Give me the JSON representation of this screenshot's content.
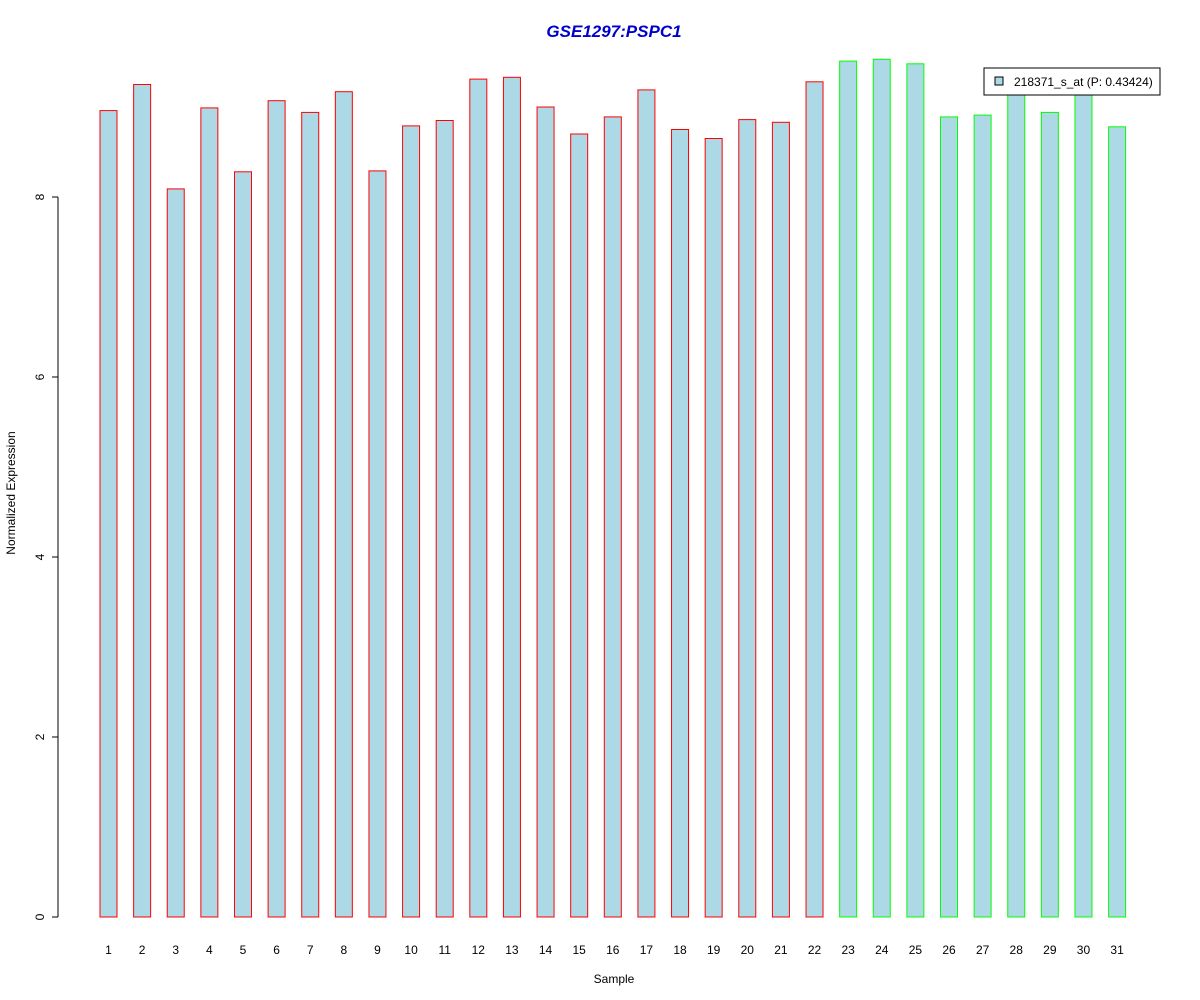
{
  "chart_data": {
    "type": "bar",
    "title": "GSE1297:PSPC1",
    "xlabel": "Sample",
    "ylabel": "Normalized Expression",
    "categories": [
      "1",
      "2",
      "3",
      "4",
      "5",
      "6",
      "7",
      "8",
      "9",
      "10",
      "11",
      "12",
      "13",
      "14",
      "15",
      "16",
      "17",
      "18",
      "19",
      "20",
      "21",
      "22",
      "23",
      "24",
      "25",
      "26",
      "27",
      "28",
      "29",
      "30",
      "31"
    ],
    "values": [
      8.96,
      9.25,
      8.09,
      8.99,
      8.28,
      9.07,
      8.94,
      9.17,
      8.29,
      8.79,
      8.85,
      9.31,
      9.33,
      9.0,
      8.7,
      8.89,
      9.19,
      8.75,
      8.65,
      8.86,
      8.83,
      9.28,
      9.51,
      9.53,
      9.48,
      8.89,
      8.91,
      9.16,
      8.94,
      9.15,
      8.78
    ],
    "groups": [
      "red",
      "red",
      "red",
      "red",
      "red",
      "red",
      "red",
      "red",
      "red",
      "red",
      "red",
      "red",
      "red",
      "red",
      "red",
      "red",
      "red",
      "red",
      "red",
      "red",
      "red",
      "red",
      "green",
      "green",
      "green",
      "green",
      "green",
      "green",
      "green",
      "green",
      "green"
    ],
    "ylim": [
      0,
      9.55
    ],
    "yticks": [
      0,
      2,
      4,
      6,
      8
    ],
    "legend": {
      "label": "218371_s_at (P: 0.43424)",
      "placement": "top-right"
    },
    "grid": false,
    "colors": {
      "fill": "#add8e6",
      "group_red": "#ff0000",
      "group_green": "#00ff00",
      "title": "#0000cd"
    }
  }
}
